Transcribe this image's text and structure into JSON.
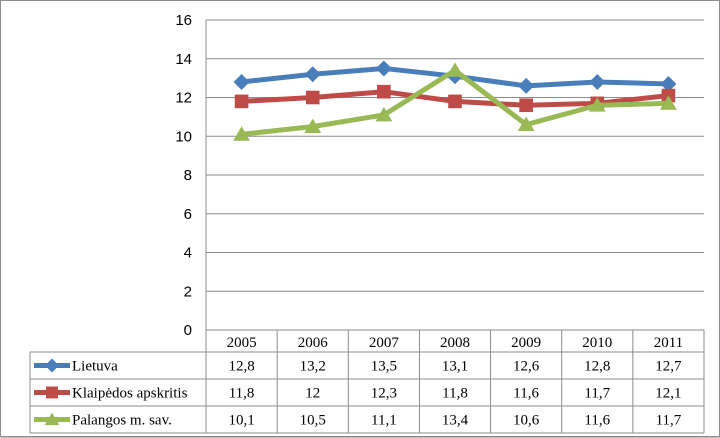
{
  "chart_data": {
    "type": "line",
    "title": "",
    "xlabel": "",
    "ylabel": "",
    "categories": [
      "2005",
      "2006",
      "2007",
      "2008",
      "2009",
      "2010",
      "2011"
    ],
    "ylim": [
      0,
      16
    ],
    "yticks": [
      "0",
      "2",
      "4",
      "6",
      "8",
      "10",
      "12",
      "14",
      "16"
    ],
    "grid": true,
    "legend_placement": "data-table-left",
    "series": [
      {
        "name": "Lietuva",
        "color": "#4a7ebb",
        "marker": "diamond",
        "values": [
          12.8,
          13.2,
          13.5,
          13.1,
          12.6,
          12.8,
          12.7
        ],
        "labels": [
          "12,8",
          "13,2",
          "13,5",
          "13,1",
          "12,6",
          "12,8",
          "12,7"
        ]
      },
      {
        "name": "Klaipėdos apskritis",
        "color": "#be4b48",
        "marker": "square",
        "values": [
          11.8,
          12,
          12.3,
          11.8,
          11.6,
          11.7,
          12.1
        ],
        "labels": [
          "11,8",
          "12",
          "12,3",
          "11,8",
          "11,6",
          "11,7",
          "12,1"
        ]
      },
      {
        "name": "Palangos m. sav.",
        "color": "#98b954",
        "marker": "triangle",
        "values": [
          10.1,
          10.5,
          11.1,
          13.4,
          10.6,
          11.6,
          11.7
        ],
        "labels": [
          "10,1",
          "10,5",
          "11,1",
          "13,4",
          "10,6",
          "11,6",
          "11,7"
        ]
      }
    ]
  }
}
